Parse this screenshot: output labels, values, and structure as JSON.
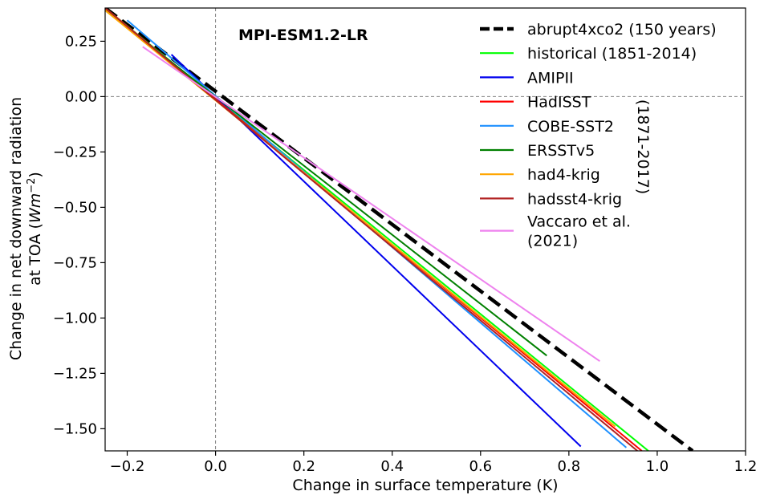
{
  "chart_data": {
    "type": "line",
    "title": "MPI-ESM1.2-LR",
    "xlabel": "Change in surface temperature (K)",
    "ylabel_line1": "Change in net downward radiation",
    "ylabel_line2_prefix": "at TOA (",
    "ylabel_unit_base": "Wm",
    "ylabel_unit_exp": "−2",
    "ylabel_line2_suffix": ")",
    "xlim": [
      -0.25,
      1.2
    ],
    "ylim": [
      -1.6,
      0.4
    ],
    "xticks": [
      -0.2,
      0.0,
      0.2,
      0.4,
      0.6,
      0.8,
      1.0,
      1.2
    ],
    "xtick_labels": [
      "−0.2",
      "0.0",
      "0.2",
      "0.4",
      "0.6",
      "0.8",
      "1.0",
      "1.2"
    ],
    "yticks": [
      0.25,
      0.0,
      -0.25,
      -0.5,
      -0.75,
      -1.0,
      -1.25,
      -1.5
    ],
    "ytick_labels": [
      "0.25",
      "0.00",
      "−0.25",
      "−0.50",
      "−0.75",
      "−1.00",
      "−1.25",
      "−1.50"
    ],
    "reference_lines": {
      "x": 0.0,
      "y": 0.0,
      "style": "dashed",
      "color": "#808080"
    },
    "legend_position": "top-right",
    "bracket_label": "(1871-2017)",
    "series": [
      {
        "name": "abrupt4xco2 (150 years)",
        "color": "#000000",
        "dashed": true,
        "width": 4.5,
        "x": [
          -0.25,
          1.08
        ],
        "y": [
          0.4,
          -1.6
        ]
      },
      {
        "name": "historical (1851-2014)",
        "color": "#00ff00",
        "dashed": false,
        "width": 2,
        "x": [
          -0.25,
          0.98
        ],
        "y": [
          0.4,
          -1.6
        ]
      },
      {
        "name": "AMIPII",
        "color": "#0000ee",
        "dashed": false,
        "width": 2,
        "x": [
          -0.1,
          0.827
        ],
        "y": [
          0.19,
          -1.58
        ]
      },
      {
        "name": "HadISST",
        "color": "#ff0000",
        "dashed": false,
        "width": 2,
        "x": [
          -0.25,
          0.965
        ],
        "y": [
          0.4,
          -1.6
        ]
      },
      {
        "name": "COBE-SST2",
        "color": "#1e90ff",
        "dashed": false,
        "width": 2,
        "x": [
          -0.2,
          0.93
        ],
        "y": [
          0.345,
          -1.585
        ]
      },
      {
        "name": "ERSSTv5",
        "color": "#008000",
        "dashed": false,
        "width": 2,
        "x": [
          -0.25,
          0.75
        ],
        "y": [
          0.39,
          -1.17
        ]
      },
      {
        "name": "had4-krig",
        "color": "#ffa500",
        "dashed": false,
        "width": 2,
        "x": [
          -0.25,
          0.905
        ],
        "y": [
          0.39,
          -1.49
        ]
      },
      {
        "name": "hadsst4-krig",
        "color": "#b22222",
        "dashed": false,
        "width": 2,
        "x": [
          -0.25,
          0.955
        ],
        "y": [
          0.4,
          -1.6
        ]
      },
      {
        "name": "Vaccaro et al. (2021)",
        "name_line1": "Vaccaro et al.",
        "name_line2": "(2021)",
        "color": "#ee82ee",
        "dashed": false,
        "width": 2,
        "x": [
          -0.165,
          0.87
        ],
        "y": [
          0.225,
          -1.195
        ]
      }
    ]
  }
}
